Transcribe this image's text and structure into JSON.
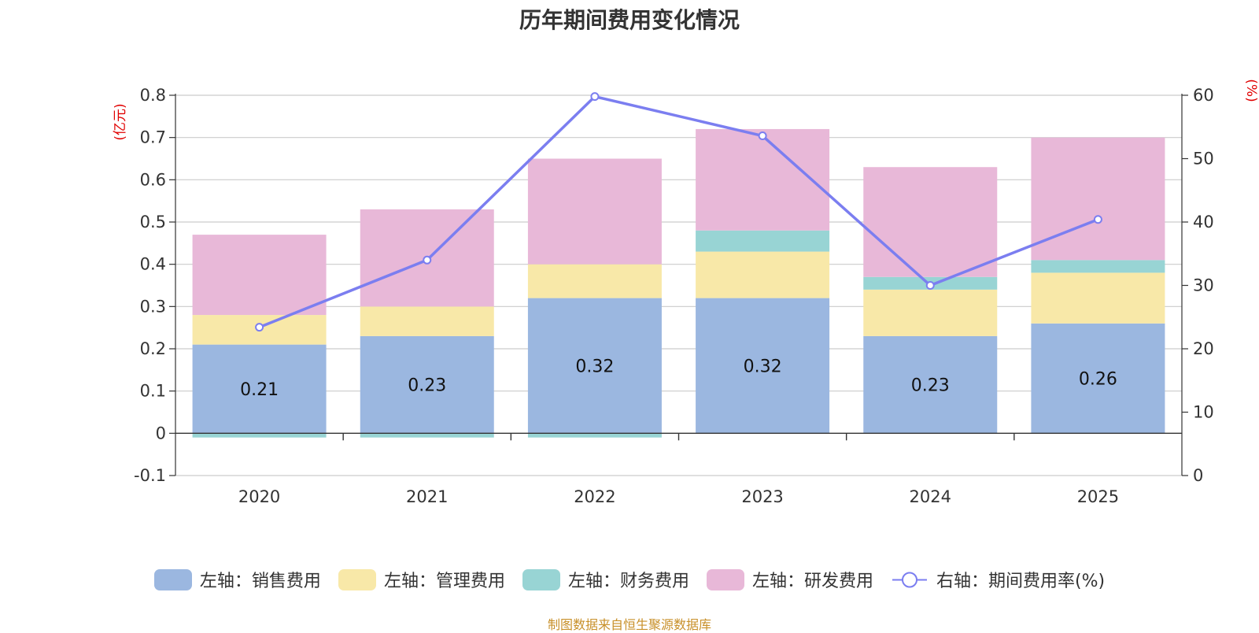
{
  "chart_data": {
    "type": "bar",
    "stacked": true,
    "title": "历年期间费用变化情况",
    "categories": [
      "2020",
      "2021",
      "2022",
      "2023",
      "2024",
      "2025"
    ],
    "left_axis": {
      "unit": "(亿元)",
      "ylim": [
        -0.1,
        0.8
      ],
      "ticks": [
        "-0.1",
        "0",
        "0.1",
        "0.2",
        "0.3",
        "0.4",
        "0.5",
        "0.6",
        "0.7",
        "0.8"
      ]
    },
    "right_axis": {
      "unit": "(%)",
      "ylim": [
        0,
        60
      ],
      "ticks": [
        "0",
        "10",
        "20",
        "30",
        "40",
        "50",
        "60"
      ]
    },
    "series": [
      {
        "name": "左轴：销售费用",
        "color": "#9bb7e0",
        "values": [
          0.21,
          0.23,
          0.32,
          0.32,
          0.23,
          0.26
        ],
        "labels": [
          "0.21",
          "0.23",
          "0.32",
          "0.32",
          "0.23",
          "0.26"
        ]
      },
      {
        "name": "左轴：管理费用",
        "color": "#f8e8a8",
        "values": [
          0.07,
          0.07,
          0.08,
          0.11,
          0.11,
          0.12
        ]
      },
      {
        "name": "左轴：财务费用",
        "color": "#98d4d4",
        "values": [
          -0.01,
          -0.01,
          -0.01,
          0.05,
          0.03,
          0.03
        ]
      },
      {
        "name": "左轴：研发费用",
        "color": "#e8b8d8",
        "values": [
          0.19,
          0.23,
          0.25,
          0.24,
          0.26,
          0.29
        ]
      }
    ],
    "line_series": {
      "name": "右轴：期间费用率(%)",
      "color": "#7b7ef0",
      "values": [
        23.4,
        34.0,
        59.8,
        53.6,
        30.0,
        40.4
      ]
    },
    "grid": true,
    "legend_position": "bottom"
  },
  "footer": {
    "source": "制图数据来自恒生聚源数据库"
  }
}
